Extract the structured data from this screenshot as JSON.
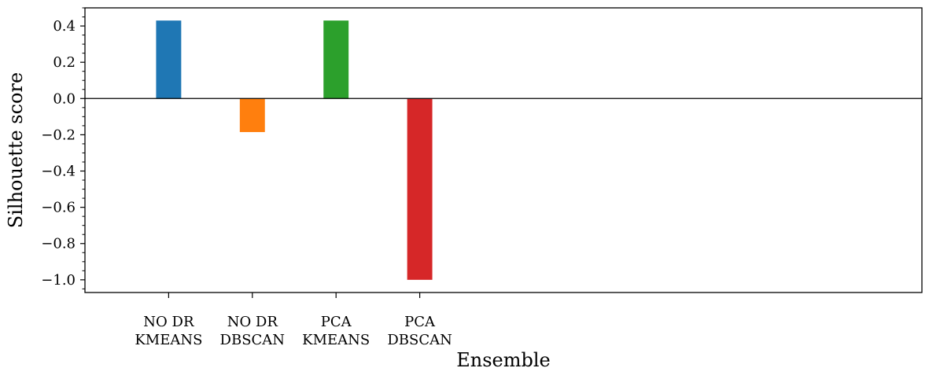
{
  "chart_data": {
    "type": "bar",
    "title": "",
    "xlabel": "Ensemble",
    "ylabel": "Silhouette score",
    "categories": [
      [
        "NO DR",
        "KMEANS"
      ],
      [
        "NO DR",
        "DBSCAN"
      ],
      [
        "PCA",
        "KMEANS"
      ],
      [
        "PCA",
        "DBSCAN"
      ]
    ],
    "values": [
      0.43,
      -0.185,
      0.43,
      -1.0
    ],
    "colors": [
      "#1f77b4",
      "#ff7f0e",
      "#2ca02c",
      "#d62728"
    ],
    "ylim": [
      -1.07,
      0.5
    ],
    "yticks": [
      0.4,
      0.2,
      0.0,
      -0.2,
      -0.4,
      -0.6,
      -0.8,
      -1.0
    ],
    "ytick_labels": [
      "0.4",
      "0.2",
      "0.0",
      "−0.2",
      "−0.4",
      "−0.6",
      "−0.8",
      "−1.0"
    ],
    "xlim": [
      0,
      10
    ],
    "x_positions": [
      1,
      2,
      3,
      4
    ],
    "bar_width": 0.3,
    "zero_line": true,
    "grid": false,
    "legend": false
  }
}
